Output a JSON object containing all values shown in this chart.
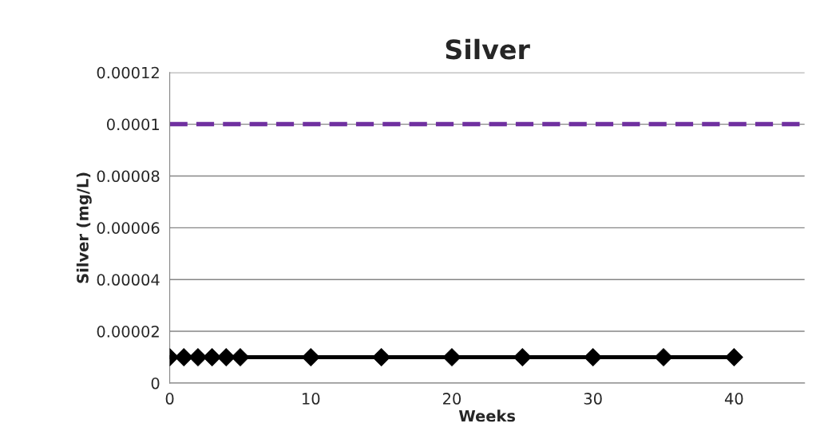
{
  "chart_data": {
    "type": "line",
    "title": "Silver",
    "xlabel": "Weeks",
    "ylabel": "Silver (mg/L)",
    "x": [
      0,
      1,
      2,
      3,
      4,
      5,
      10,
      15,
      20,
      25,
      30,
      35,
      40
    ],
    "series": [
      {
        "color": "#000000",
        "values": [
          1e-05,
          1e-05,
          1e-05,
          1e-05,
          1e-05,
          1e-05,
          1e-05,
          1e-05,
          1e-05,
          1e-05,
          1e-05,
          1e-05,
          1e-05
        ]
      }
    ],
    "marker": "diamond",
    "line_style": "solid",
    "ref_lines": [
      {
        "axis": "y",
        "value": 0.0001,
        "color": "#7030a0",
        "line_style": "dashed"
      }
    ],
    "xlim": [
      0,
      45
    ],
    "xticks": [
      0,
      10,
      20,
      30,
      40
    ],
    "ylim": [
      0,
      0.00012
    ],
    "yticks": [
      0,
      {
        "value": 2e-05,
        "label": "0.00002"
      },
      {
        "value": 4e-05,
        "label": "0.00004"
      },
      {
        "value": 6e-05,
        "label": "0.00006"
      },
      {
        "value": 8e-05,
        "label": "0.00008"
      },
      {
        "value": 0.0001,
        "label": "0.0001"
      },
      {
        "value": 0.00012,
        "label": "0.00012"
      }
    ],
    "grid": "y"
  }
}
